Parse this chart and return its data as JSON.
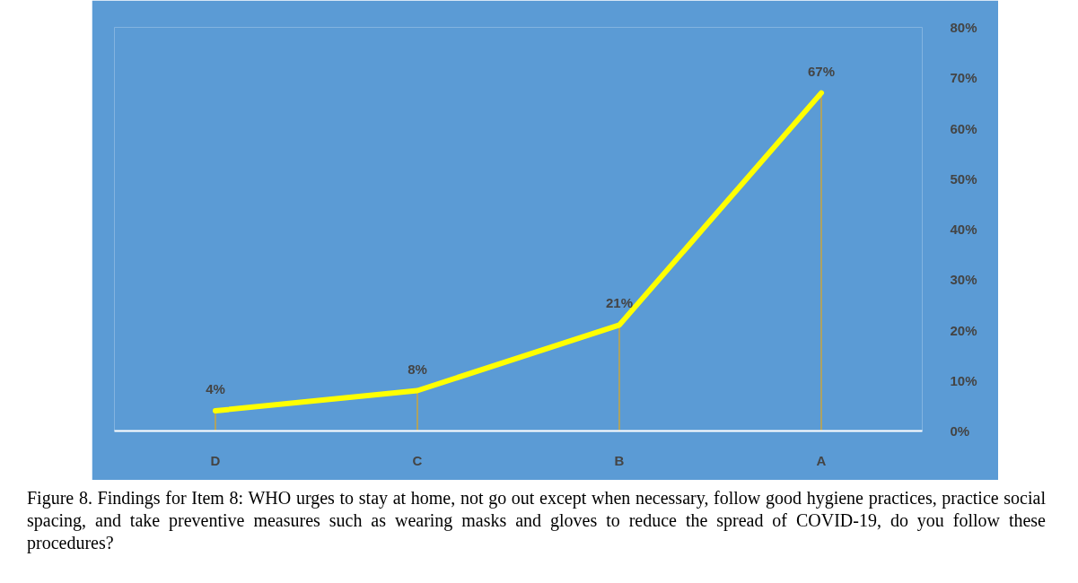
{
  "chart_data": {
    "type": "line",
    "categories": [
      "D",
      "C",
      "B",
      "A"
    ],
    "series": [
      {
        "color": "#ffff00",
        "values": [
          4,
          8,
          21,
          67
        ],
        "value_labels": [
          "4%",
          "8%",
          "21%",
          "67%"
        ],
        "errors": [
          [
            0,
            4
          ],
          [
            0,
            8
          ],
          [
            0,
            21
          ],
          [
            0,
            67
          ]
        ]
      }
    ],
    "ylim": [
      0,
      80
    ],
    "yticks": [
      {
        "value": 0,
        "label": "0%"
      },
      {
        "value": 10,
        "label": "10%"
      },
      {
        "value": 20,
        "label": "20%"
      },
      {
        "value": 30,
        "label": "30%"
      },
      {
        "value": 40,
        "label": "40%"
      },
      {
        "value": 50,
        "label": "50%"
      },
      {
        "value": 60,
        "label": "60%"
      },
      {
        "value": 70,
        "label": "70%"
      },
      {
        "value": 80,
        "label": "80%"
      }
    ],
    "grid": false,
    "marker": "none",
    "line_style": "solid",
    "annotations": [
      "Figure 8. Findings for Item 8: WHO urges to stay at home, not go out except when necessary, follow good hygiene practices, practice social spacing, and take preventive measures such as wearing masks and gloves to reduce the spread of COVID-19, do you follow these procedures?"
    ]
  }
}
